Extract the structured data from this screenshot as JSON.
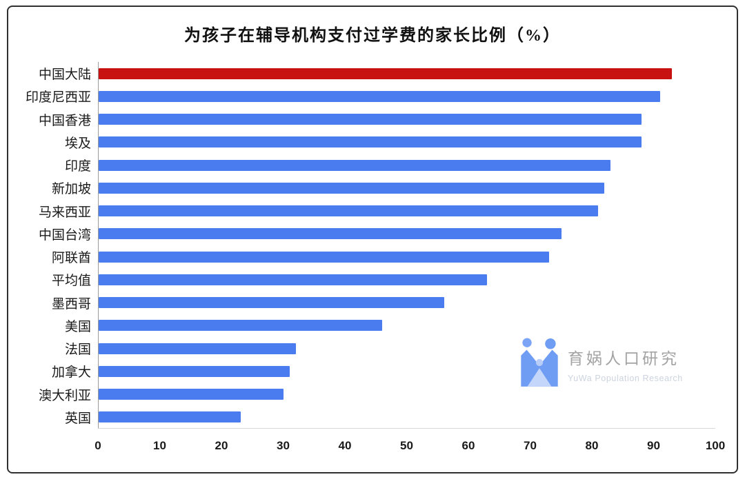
{
  "chart_data": {
    "type": "bar",
    "orientation": "horizontal",
    "title": "为孩子在辅导机构支付过学费的家长比例（%）",
    "categories": [
      "中国大陆",
      "印度尼西亚",
      "中国香港",
      "埃及",
      "印度",
      "新加坡",
      "马来西亚",
      "中国台湾",
      "阿联酋",
      "平均值",
      "墨西哥",
      "美国",
      "法国",
      "加拿大",
      "澳大利亚",
      "英国"
    ],
    "values": [
      93,
      91,
      88,
      88,
      83,
      82,
      81,
      75,
      73,
      63,
      56,
      46,
      32,
      31,
      30,
      23
    ],
    "highlight_category": "中国大陆",
    "highlight_index": 0,
    "bar_color": "#4a7cf0",
    "highlight_color": "#c81212",
    "xlabel": "",
    "ylabel": "",
    "xlim": [
      0,
      100
    ],
    "x_ticks": [
      0,
      10,
      20,
      30,
      40,
      50,
      60,
      70,
      80,
      90,
      100
    ],
    "grid": false,
    "legend": "none"
  },
  "watermark": {
    "name": "育娲人口研究",
    "subtitle": "YuWa Population Research",
    "logo_color": "#6f9df3",
    "logo_head_color": "#7ba4f6",
    "logo_light_color": "#c5d6fb"
  }
}
